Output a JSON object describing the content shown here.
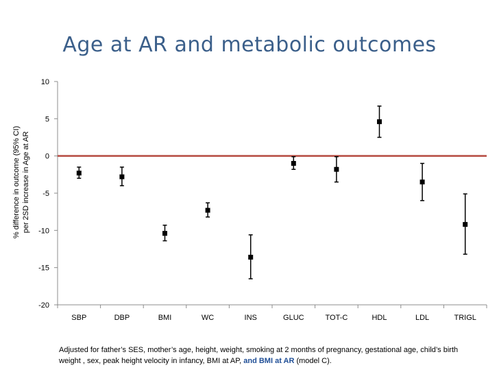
{
  "slide": {
    "title": "Age at AR and metabolic outcomes",
    "footnote_text": "Adjusted for father’s SES, mother’s age, height, weight, smoking at 2 months of pregnancy, gestational age, child’s birth weight , sex, peak height velocity in infancy, BMI at AP, ",
    "footnote_highlight": "and BMI at AR",
    "footnote_tail": " (model C).",
    "highlight_color": "#1f4e96"
  },
  "chart_data": {
    "type": "scatter",
    "title": "",
    "xlabel": "",
    "ylabel_lines": [
      "% difference in outcome (95% CI)",
      "per 2SD increase in Age at AR"
    ],
    "ylim": [
      -20,
      10
    ],
    "yticks": [
      10,
      5,
      0,
      -5,
      -10,
      -15,
      -20
    ],
    "grid": false,
    "reference_line": {
      "y": 0,
      "color": "#b5483e"
    },
    "marker_color": "#000000",
    "categories": [
      "SBP",
      "DBP",
      "BMI",
      "WC",
      "INS",
      "GLUC",
      "TOT-C",
      "HDL",
      "LDL",
      "TRIGL"
    ],
    "estimates": [
      -2.3,
      -2.8,
      -10.4,
      -7.3,
      -13.6,
      -1.0,
      -1.8,
      4.6,
      -3.5,
      -9.2
    ],
    "ci_lower": [
      -3.0,
      -4.0,
      -11.4,
      -8.2,
      -16.5,
      -1.8,
      -3.5,
      2.5,
      -6.0,
      -13.2
    ],
    "ci_upper": [
      -1.5,
      -1.5,
      -9.3,
      -6.3,
      -10.6,
      -0.1,
      -0.1,
      6.7,
      -1.0,
      -5.1
    ]
  }
}
